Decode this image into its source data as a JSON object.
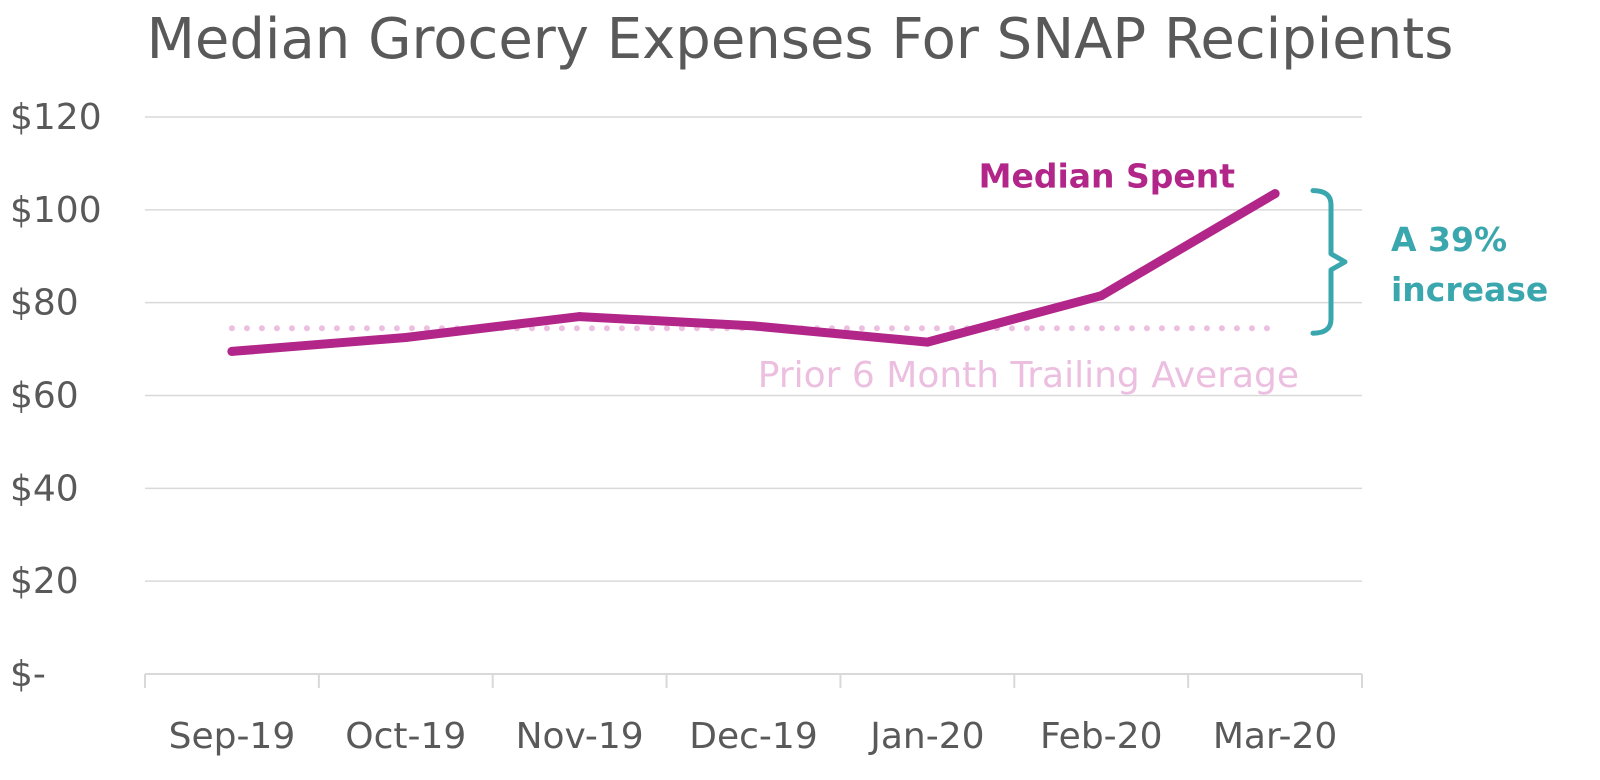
{
  "colors": {
    "series": "#b12688",
    "average": "#ecbfe0",
    "annotation": "#3aa6ad",
    "grid": "#d9d9d9",
    "text": "#595959"
  },
  "chart_data": {
    "type": "line",
    "title": "Median Grocery Expenses For SNAP Recipients",
    "categories": [
      "Sep-19",
      "Oct-19",
      "Nov-19",
      "Dec-19",
      "Jan-20",
      "Feb-20",
      "Mar-20"
    ],
    "ylim": [
      0,
      120
    ],
    "y_ticks": [
      0,
      20,
      40,
      60,
      80,
      100,
      120
    ],
    "y_tick_labels": [
      "$-",
      "$20",
      "$40",
      "$60",
      "$80",
      "$100",
      "$120"
    ],
    "grid": true,
    "series": [
      {
        "name": "Median Spent",
        "values": [
          69.5,
          72.5,
          77,
          75,
          71.5,
          81.5,
          103.5
        ]
      }
    ],
    "reference_line": {
      "label": "Prior 6 Month Trailing Average",
      "value": 74.5,
      "style": "dotted"
    },
    "annotation": {
      "lines": [
        "A 39%",
        "increase"
      ],
      "from": 74.5,
      "to": 103.5
    }
  }
}
